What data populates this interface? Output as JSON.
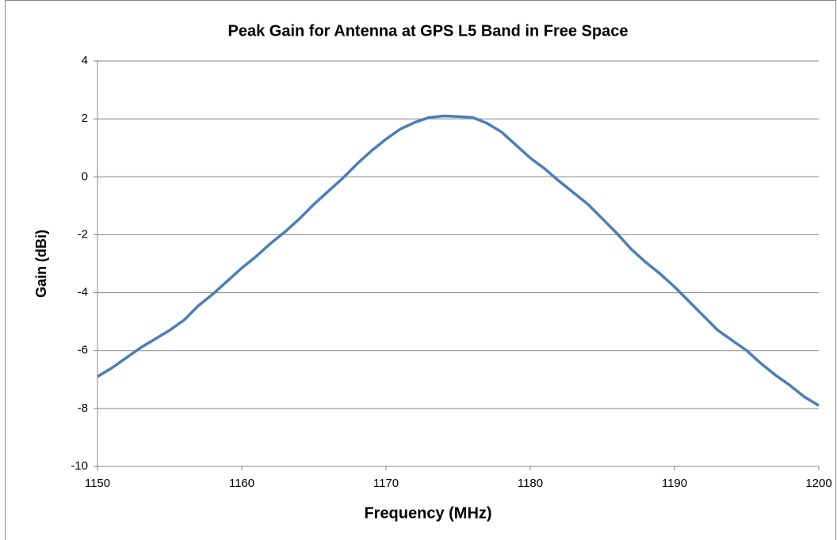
{
  "chart_data": {
    "type": "line",
    "title": "Peak Gain for Antenna at GPS L5 Band in Free Space",
    "x_label": "Frequency  (MHz)",
    "y_label": "Gain (dBi)",
    "x": [
      1150,
      1151,
      1152,
      1153,
      1154,
      1155,
      1156,
      1157,
      1158,
      1159,
      1160,
      1161,
      1162,
      1163,
      1164,
      1165,
      1166,
      1167,
      1168,
      1169,
      1170,
      1171,
      1172,
      1173,
      1174,
      1175,
      1176,
      1177,
      1178,
      1179,
      1180,
      1181,
      1182,
      1183,
      1184,
      1185,
      1186,
      1187,
      1188,
      1189,
      1190,
      1191,
      1192,
      1193,
      1194,
      1195,
      1196,
      1197,
      1198,
      1199,
      1200
    ],
    "series": [
      {
        "name": "Peak Gain",
        "color": "#4a7ebb",
        "values": [
          -6.9,
          -6.6,
          -6.25,
          -5.9,
          -5.6,
          -5.3,
          -4.95,
          -4.45,
          -4.05,
          -3.6,
          -3.15,
          -2.75,
          -2.3,
          -1.9,
          -1.45,
          -0.95,
          -0.5,
          -0.05,
          0.45,
          0.9,
          1.3,
          1.65,
          1.88,
          2.05,
          2.1,
          2.08,
          2.05,
          1.85,
          1.55,
          1.1,
          0.65,
          0.28,
          -0.15,
          -0.55,
          -0.95,
          -1.45,
          -1.95,
          -2.5,
          -2.95,
          -3.35,
          -3.8,
          -4.3,
          -4.8,
          -5.3,
          -5.65,
          -6.0,
          -6.45,
          -6.85,
          -7.2,
          -7.6,
          -7.9
        ]
      }
    ],
    "xlim": [
      1150,
      1200
    ],
    "xticks": [
      1150,
      1160,
      1170,
      1180,
      1190,
      1200
    ],
    "ylim": [
      -10,
      4
    ],
    "yticks": [
      -10,
      -8,
      -6,
      -4,
      -2,
      0,
      2,
      4
    ],
    "grid": true
  }
}
